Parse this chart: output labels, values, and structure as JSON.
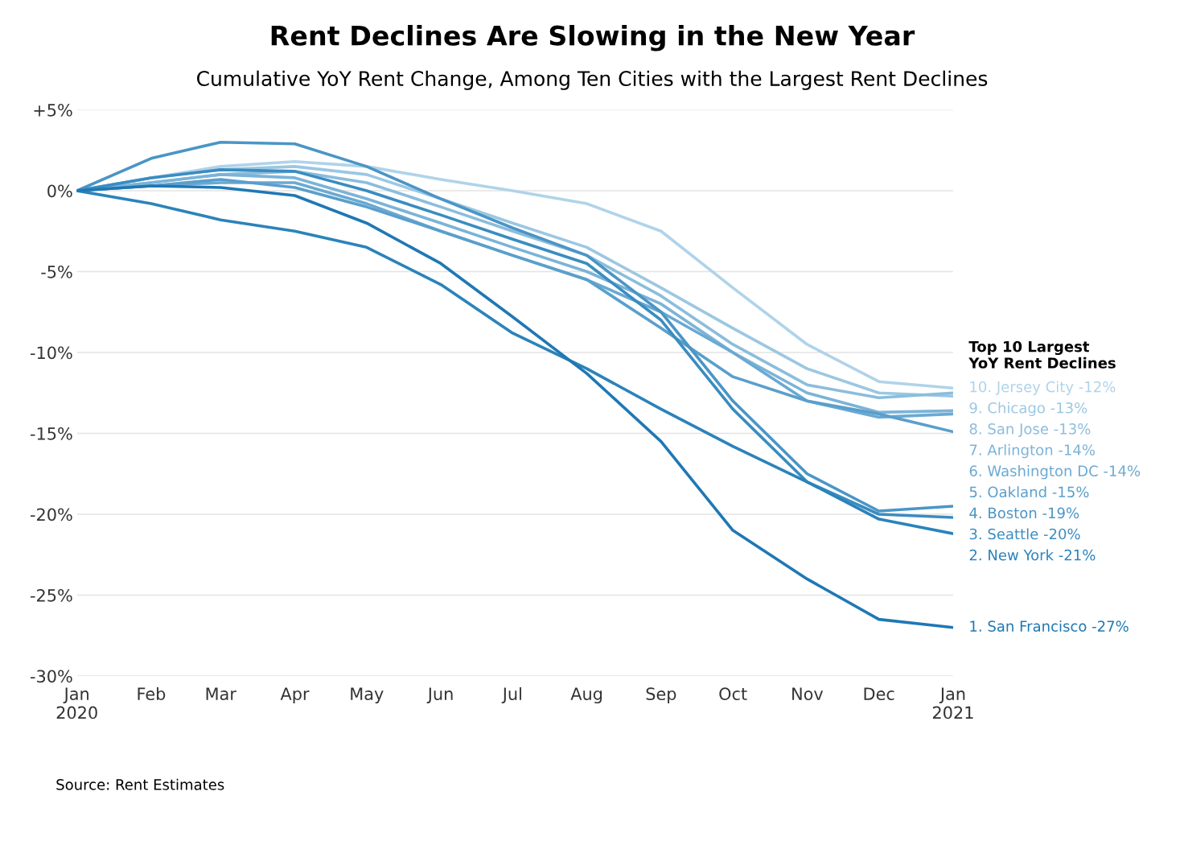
{
  "chart_data": {
    "type": "line",
    "title": "Rent Declines Are Slowing in the New Year",
    "subtitle": "Cumulative YoY Rent Change, Among Ten Cities with the Largest Rent Declines",
    "legend_title": "Top 10 Largest\nYoY Rent Declines",
    "x": [
      "2020-01",
      "2020-02",
      "2020-03",
      "2020-04",
      "2020-05",
      "2020-06",
      "2020-07",
      "2020-08",
      "2020-09",
      "2020-10",
      "2020-11",
      "2020-12",
      "2021-01"
    ],
    "xlim": [
      "2020-01",
      "2021-01"
    ],
    "xticks": [
      {
        "value": "2020-01",
        "label": "Jan\n2020"
      },
      {
        "value": "2020-02",
        "label": "Feb"
      },
      {
        "value": "2020-03",
        "label": "Mar"
      },
      {
        "value": "2020-04",
        "label": "Apr"
      },
      {
        "value": "2020-05",
        "label": "May"
      },
      {
        "value": "2020-06",
        "label": "Jun"
      },
      {
        "value": "2020-07",
        "label": "Jul"
      },
      {
        "value": "2020-08",
        "label": "Aug"
      },
      {
        "value": "2020-09",
        "label": "Sep"
      },
      {
        "value": "2020-10",
        "label": "Oct"
      },
      {
        "value": "2020-11",
        "label": "Nov"
      },
      {
        "value": "2020-12",
        "label": "Dec"
      },
      {
        "value": "2021-01",
        "label": "Jan\n2021"
      }
    ],
    "ylim": [
      -30,
      5
    ],
    "yticks": [
      {
        "value": -30,
        "label": "-30%"
      },
      {
        "value": -25,
        "label": "-25%"
      },
      {
        "value": -20,
        "label": "-20%"
      },
      {
        "value": -15,
        "label": "-15%"
      },
      {
        "value": -10,
        "label": "-10%"
      },
      {
        "value": -5,
        "label": "-5%"
      },
      {
        "value": 0,
        "label": "0%"
      },
      {
        "value": 5,
        "label": "+5%"
      }
    ],
    "grid": "y",
    "legend": false,
    "marker": "none",
    "line_style": "solid",
    "series": [
      {
        "name": "10. Jersey City -12%",
        "color": "#b0d3ea",
        "values": [
          0,
          0.8,
          1.5,
          1.8,
          1.5,
          0.7,
          0,
          -0.8,
          -2.5,
          -6,
          -9.5,
          -11.8,
          -12.2
        ]
      },
      {
        "name": "9. Chicago -13%",
        "color": "#9cc7e2",
        "values": [
          0,
          0.8,
          1.3,
          1.5,
          1,
          -0.5,
          -2,
          -3.5,
          -6,
          -8.5,
          -11,
          -12.5,
          -12.7
        ]
      },
      {
        "name": "8. San Jose -13%",
        "color": "#8bbddc",
        "values": [
          0,
          0.5,
          1,
          1.2,
          0.5,
          -1,
          -2.5,
          -4,
          -6.5,
          -9.5,
          -12,
          -12.8,
          -12.5
        ]
      },
      {
        "name": "7. Arlington -14%",
        "color": "#7bb3d7",
        "values": [
          0,
          0.5,
          1,
          0.8,
          -0.5,
          -2,
          -3.5,
          -5,
          -7,
          -10,
          -12.5,
          -13.7,
          -13.6
        ]
      },
      {
        "name": "6. Washington DC -14%",
        "color": "#6aa9d2",
        "values": [
          0,
          0.3,
          0.5,
          0.5,
          -0.8,
          -2.5,
          -4,
          -5.5,
          -7.5,
          -10,
          -13,
          -14,
          -13.8
        ]
      },
      {
        "name": "5. Oakland -15%",
        "color": "#5a9fcc",
        "values": [
          0,
          0.3,
          0.7,
          0.2,
          -1,
          -2.5,
          -4,
          -5.5,
          -8.5,
          -11.5,
          -13,
          -13.8,
          -14.9
        ]
      },
      {
        "name": "4. Boston -19%",
        "color": "#4a95c6",
        "values": [
          0,
          2,
          3,
          2.9,
          1.5,
          -0.5,
          -2.3,
          -4,
          -7.5,
          -13,
          -17.5,
          -19.8,
          -19.5
        ]
      },
      {
        "name": "3. Seattle -20%",
        "color": "#3a8cc0",
        "values": [
          0,
          0.8,
          1.3,
          1.2,
          0,
          -1.5,
          -3,
          -4.5,
          -8,
          -13.5,
          -18,
          -20,
          -20.2
        ]
      },
      {
        "name": "2. New York -21%",
        "color": "#2b83ba",
        "values": [
          0,
          -0.8,
          -1.8,
          -2.5,
          -3.5,
          -5.8,
          -8.8,
          -11,
          -13.5,
          -15.8,
          -18,
          -20.3,
          -21.2
        ]
      },
      {
        "name": "1. San Francisco -27%",
        "color": "#1f78b4",
        "values": [
          0,
          0.3,
          0.2,
          -0.3,
          -2,
          -4.5,
          -7.8,
          -11.3,
          -15.5,
          -21,
          -24,
          -26.5,
          -27
        ]
      }
    ],
    "annotations": [
      "Source: Rent Estimates"
    ]
  }
}
